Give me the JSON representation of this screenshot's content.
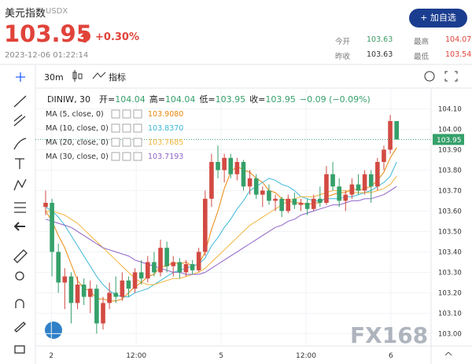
{
  "header": {
    "name": "美元指数",
    "code": "USDX",
    "price": "103.95",
    "change": "+0.30%",
    "time": "2023-12-06 01:22:14",
    "button": "+ 加自选",
    "stats": [
      {
        "label": "今开",
        "value": "103.63"
      },
      {
        "label": "最高",
        "value": "104.07"
      },
      {
        "label": "昨收",
        "value": "103.63"
      },
      {
        "label": "最低",
        "value": "103.54"
      }
    ]
  },
  "toolbar": {
    "interval": "30m",
    "indicators": "指标"
  },
  "chart_data": {
    "type": "candlestick",
    "symbol": "DINIW, 30",
    "ohlc_legend": [
      {
        "key": "开=",
        "value": "104.04"
      },
      {
        "key": "高=",
        "value": "104.04"
      },
      {
        "key": "低=",
        "value": "103.95"
      },
      {
        "key": "收=",
        "value": "103.95"
      }
    ],
    "change_label": "−0.09 (−0.09%)",
    "watermark": "FX168",
    "up_color": "#d24a42",
    "down_color": "#35a06a",
    "x": [
      0,
      1,
      2,
      3,
      4,
      5,
      6,
      7,
      8,
      9,
      10,
      11,
      12,
      13,
      14,
      15,
      16,
      17,
      18,
      19,
      20,
      21,
      22,
      23,
      24,
      25,
      26,
      27,
      28,
      29,
      30,
      31,
      32,
      33,
      34,
      35,
      36,
      37,
      38,
      39,
      40,
      41,
      42,
      43,
      44,
      45,
      46,
      47,
      48,
      49,
      50,
      51,
      52,
      53,
      54,
      55
    ],
    "open": [
      103.62,
      103.64,
      103.4,
      103.25,
      103.28,
      103.15,
      103.24,
      103.18,
      103.22,
      103.05,
      103.15,
      103.2,
      103.18,
      103.26,
      103.22,
      103.3,
      103.27,
      103.35,
      103.3,
      103.42,
      103.33,
      103.35,
      103.3,
      103.34,
      103.31,
      103.4,
      103.66,
      103.84,
      103.8,
      103.86,
      103.78,
      103.84,
      103.72,
      103.76,
      103.68,
      103.7,
      103.65,
      103.66,
      103.6,
      103.66,
      103.63,
      103.64,
      103.61,
      103.66,
      103.64,
      103.78,
      103.72,
      103.65,
      103.68,
      103.73,
      103.7,
      103.78,
      103.72,
      103.84,
      103.9,
      104.04
    ],
    "high": [
      103.7,
      103.66,
      103.44,
      103.32,
      103.3,
      103.28,
      103.27,
      103.26,
      103.24,
      103.18,
      103.25,
      103.28,
      103.3,
      103.28,
      103.32,
      103.36,
      103.38,
      103.4,
      103.46,
      103.45,
      103.38,
      103.37,
      103.36,
      103.36,
      103.42,
      103.7,
      103.88,
      103.92,
      103.88,
      103.88,
      103.86,
      103.85,
      103.8,
      103.78,
      103.72,
      103.73,
      103.68,
      103.67,
      103.68,
      103.69,
      103.66,
      103.66,
      103.68,
      103.72,
      103.82,
      103.84,
      103.76,
      103.7,
      103.76,
      103.78,
      103.8,
      103.8,
      103.86,
      103.92,
      104.07,
      104.04
    ],
    "low": [
      103.58,
      103.28,
      103.2,
      103.12,
      103.05,
      103.12,
      103.14,
      103.1,
      103.0,
      103.02,
      103.12,
      103.15,
      103.16,
      103.18,
      103.2,
      103.24,
      103.25,
      103.28,
      103.28,
      103.3,
      103.28,
      103.27,
      103.28,
      103.29,
      103.3,
      103.38,
      103.62,
      103.76,
      103.74,
      103.76,
      103.75,
      103.7,
      103.68,
      103.66,
      103.62,
      103.63,
      103.6,
      103.57,
      103.59,
      103.61,
      103.6,
      103.58,
      103.6,
      103.62,
      103.63,
      103.7,
      103.62,
      103.6,
      103.66,
      103.68,
      103.68,
      103.64,
      103.7,
      103.8,
      103.88,
      103.95
    ],
    "close": [
      103.64,
      103.4,
      103.25,
      103.28,
      103.15,
      103.24,
      103.18,
      103.22,
      103.05,
      103.15,
      103.2,
      103.18,
      103.26,
      103.22,
      103.3,
      103.27,
      103.35,
      103.3,
      103.42,
      103.33,
      103.35,
      103.3,
      103.34,
      103.31,
      103.4,
      103.66,
      103.84,
      103.8,
      103.86,
      103.78,
      103.84,
      103.72,
      103.76,
      103.68,
      103.7,
      103.65,
      103.66,
      103.6,
      103.66,
      103.63,
      103.64,
      103.61,
      103.66,
      103.64,
      103.78,
      103.72,
      103.65,
      103.68,
      103.73,
      103.7,
      103.78,
      103.72,
      103.84,
      103.9,
      104.04,
      103.95
    ],
    "series": [
      {
        "name": "MA (5, close, 0)",
        "last_label": "103.9080",
        "color": "#e8870e",
        "values": [
          103.6,
          103.55,
          103.48,
          103.42,
          103.34,
          103.26,
          103.22,
          103.21,
          103.17,
          103.17,
          103.16,
          103.16,
          103.17,
          103.2,
          103.23,
          103.25,
          103.28,
          103.29,
          103.33,
          103.33,
          103.35,
          103.34,
          103.35,
          103.33,
          103.34,
          103.4,
          103.51,
          103.6,
          103.71,
          103.79,
          103.82,
          103.8,
          103.79,
          103.76,
          103.74,
          103.7,
          103.69,
          103.66,
          103.65,
          103.64,
          103.64,
          103.63,
          103.64,
          103.64,
          103.67,
          103.68,
          103.69,
          103.69,
          103.71,
          103.7,
          103.71,
          103.72,
          103.75,
          103.79,
          103.86,
          103.91
        ]
      },
      {
        "name": "MA (10, close, 0)",
        "last_label": "103.8370",
        "color": "#3db8d8",
        "values": [
          103.62,
          103.6,
          103.57,
          103.53,
          103.48,
          103.43,
          103.38,
          103.33,
          103.28,
          103.24,
          103.21,
          103.19,
          103.18,
          103.18,
          103.2,
          103.21,
          103.22,
          103.24,
          103.26,
          103.28,
          103.3,
          103.31,
          103.32,
          103.33,
          103.34,
          103.37,
          103.43,
          103.47,
          103.52,
          103.56,
          103.61,
          103.65,
          103.7,
          103.72,
          103.74,
          103.76,
          103.75,
          103.73,
          103.72,
          103.7,
          103.67,
          103.66,
          103.65,
          103.65,
          103.66,
          103.66,
          103.66,
          103.67,
          103.67,
          103.68,
          103.69,
          103.7,
          103.72,
          103.74,
          103.77,
          103.84
        ]
      },
      {
        "name": "MA (20, close, 0)",
        "last_label": "103.7685",
        "color": "#f2b43c",
        "values": [
          103.6,
          103.6,
          103.59,
          103.58,
          103.56,
          103.54,
          103.51,
          103.48,
          103.45,
          103.42,
          103.39,
          103.36,
          103.33,
          103.3,
          103.27,
          103.25,
          103.24,
          103.24,
          103.25,
          103.26,
          103.27,
          103.27,
          103.28,
          103.29,
          103.3,
          103.32,
          103.35,
          103.38,
          103.41,
          103.44,
          103.47,
          103.5,
          103.53,
          103.55,
          103.57,
          103.59,
          103.61,
          103.63,
          103.65,
          103.66,
          103.67,
          103.67,
          103.67,
          103.68,
          103.69,
          103.7,
          103.7,
          103.7,
          103.69,
          103.69,
          103.69,
          103.69,
          103.7,
          103.71,
          103.73,
          103.77
        ]
      },
      {
        "name": "MA (30, close, 0)",
        "last_label": "103.7193",
        "color": "#8e63c9",
        "values": [
          103.56,
          103.55,
          103.54,
          103.53,
          103.52,
          103.5,
          103.48,
          103.46,
          103.44,
          103.42,
          103.41,
          103.4,
          103.39,
          103.38,
          103.36,
          103.35,
          103.34,
          103.33,
          103.32,
          103.31,
          103.3,
          103.3,
          103.29,
          103.29,
          103.29,
          103.3,
          103.32,
          103.34,
          103.36,
          103.38,
          103.4,
          103.42,
          103.44,
          103.46,
          103.48,
          103.5,
          103.52,
          103.53,
          103.55,
          103.56,
          103.58,
          103.59,
          103.6,
          103.61,
          103.62,
          103.63,
          103.63,
          103.64,
          103.65,
          103.65,
          103.66,
          103.66,
          103.67,
          103.68,
          103.7,
          103.72
        ]
      }
    ],
    "xlim": [
      -1.6,
      60.4
    ],
    "xticks": [
      {
        "value": 0.9,
        "label": "2"
      },
      {
        "value": 14.2,
        "label": "12:00"
      },
      {
        "value": 27.5,
        "label": "5"
      },
      {
        "value": 40.8,
        "label": "12:00"
      },
      {
        "value": 54.1,
        "label": "6"
      }
    ],
    "ylim": [
      102.94,
      104.14
    ],
    "yticks": [
      {
        "value": 104.1,
        "label": "104.10"
      },
      {
        "value": 104.0,
        "label": "104.00"
      },
      {
        "value": 103.9,
        "label": "103.90"
      },
      {
        "value": 103.8,
        "label": "103.80"
      },
      {
        "value": 103.7,
        "label": "103.70"
      },
      {
        "value": 103.6,
        "label": "103.60"
      },
      {
        "value": 103.5,
        "label": "103.50"
      },
      {
        "value": 103.4,
        "label": "103.40"
      },
      {
        "value": 103.3,
        "label": "103.30"
      },
      {
        "value": 103.2,
        "label": "103.20"
      },
      {
        "value": 103.1,
        "label": "103.10"
      },
      {
        "value": 103.0,
        "label": "103.00"
      }
    ],
    "grid": true
  }
}
